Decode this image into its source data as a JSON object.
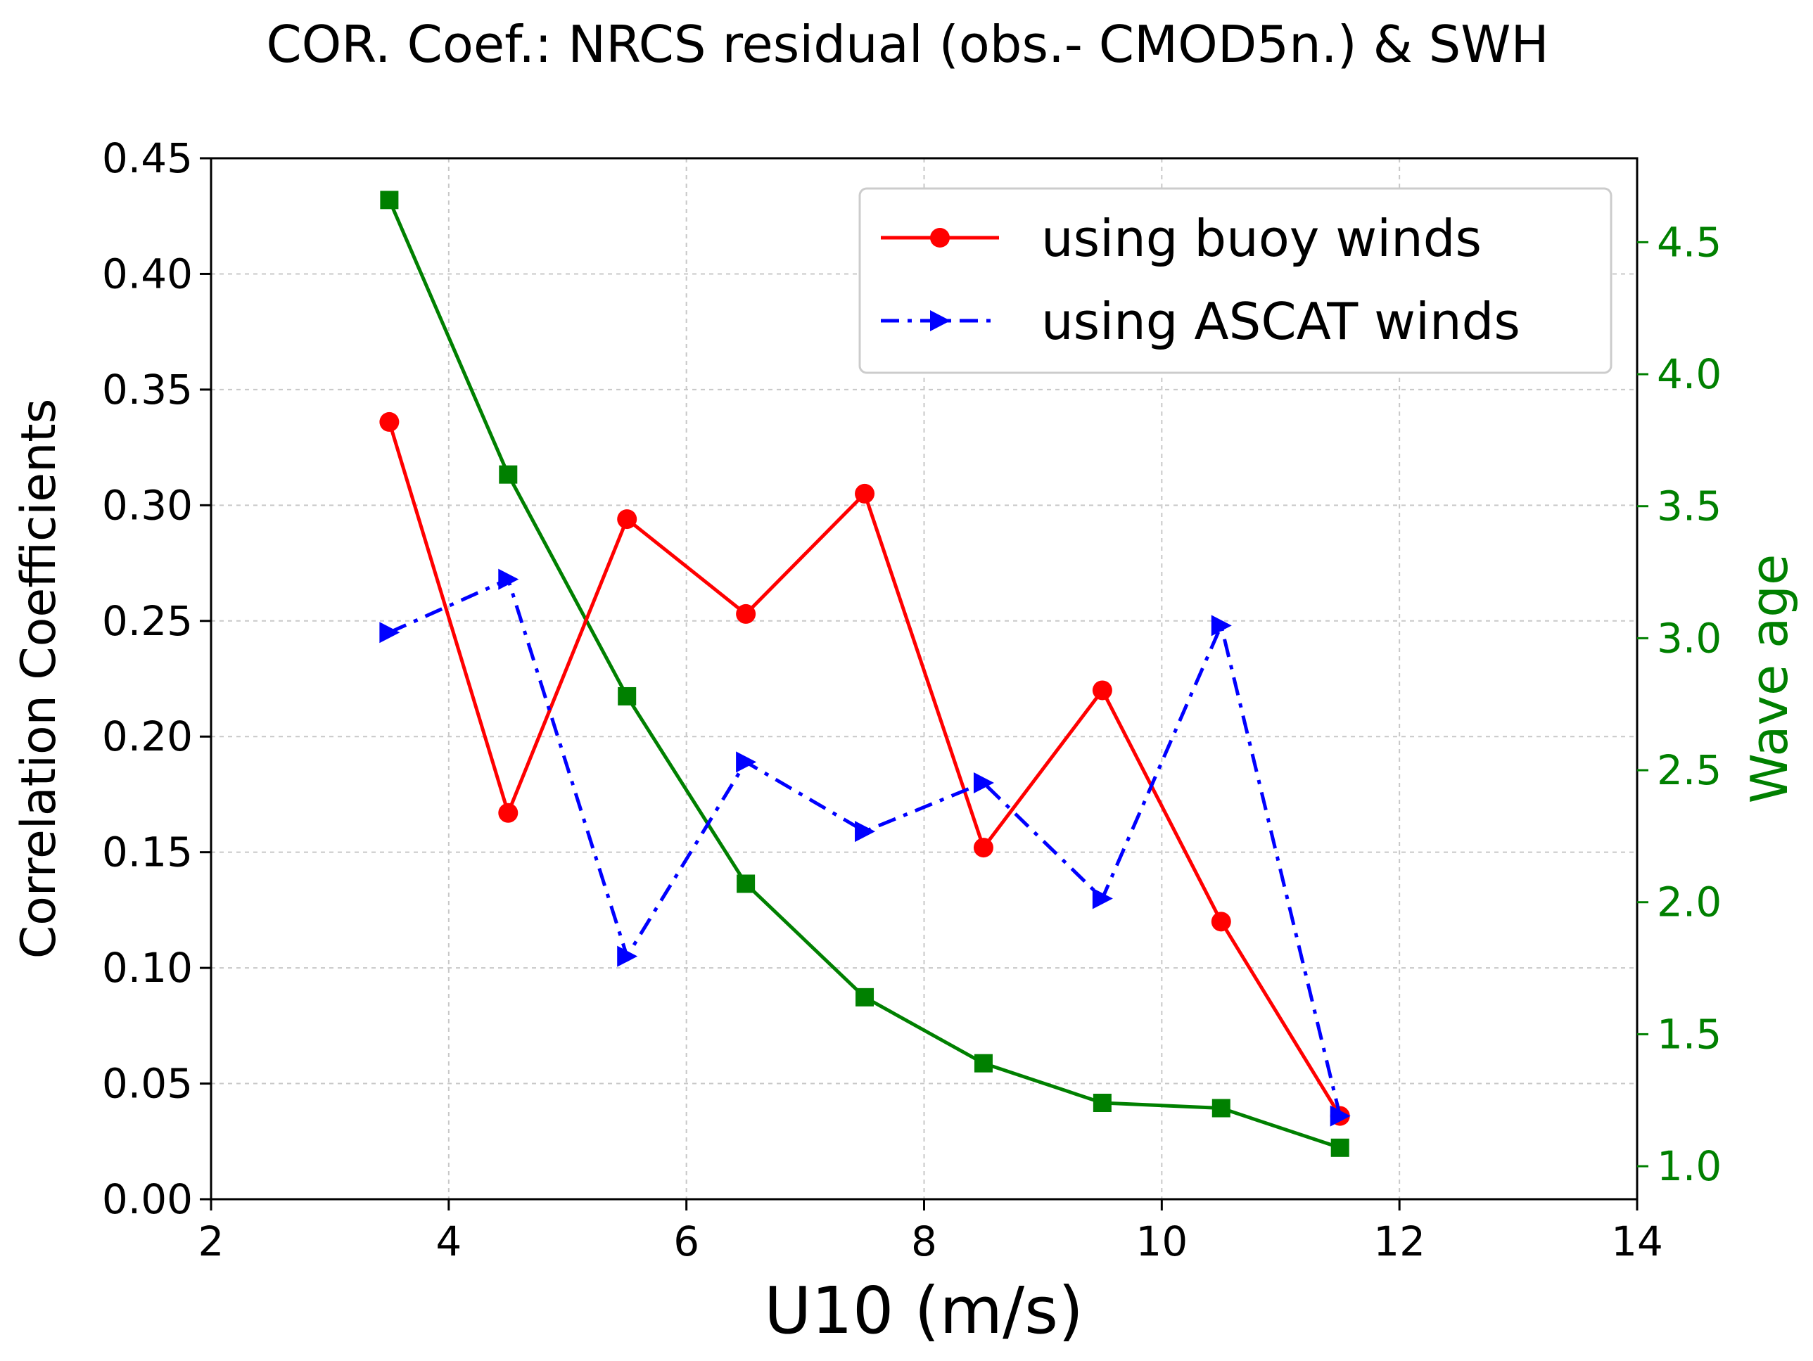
{
  "chart_data": {
    "type": "line",
    "title": "COR. Coef.: NRCS residual (obs.- CMOD5n.) & SWH",
    "xlabel": "U10 (m/s)",
    "ylabel": "Correlation Coefficients",
    "y2label": "Wave age",
    "xlim": [
      2,
      14
    ],
    "ylim": [
      0,
      0.45
    ],
    "y2lim": [
      0.875,
      4.818
    ],
    "grid": true,
    "legend_position": "top-right",
    "x_ticks": [
      "2",
      "4",
      "6",
      "8",
      "10",
      "12",
      "14"
    ],
    "y_ticks": [
      "0.00",
      "0.05",
      "0.10",
      "0.15",
      "0.20",
      "0.25",
      "0.30",
      "0.35",
      "0.40",
      "0.45"
    ],
    "y2_ticks": [
      "1.0",
      "1.5",
      "2.0",
      "2.5",
      "3.0",
      "3.5",
      "4.0",
      "4.5"
    ],
    "x": [
      3.5,
      4.5,
      5.5,
      6.5,
      7.5,
      8.5,
      9.5,
      10.5,
      11.5
    ],
    "series": [
      {
        "name": "using buoy winds",
        "axis": "left",
        "color": "#ff0000",
        "marker": "circle",
        "linestyle": "solid",
        "values": [
          0.336,
          0.167,
          0.294,
          0.253,
          0.305,
          0.152,
          0.22,
          0.12,
          0.036
        ]
      },
      {
        "name": "using ASCAT winds",
        "axis": "left",
        "color": "#0000ff",
        "marker": "triangle-right",
        "linestyle": "dashdot",
        "values": [
          0.245,
          0.268,
          0.105,
          0.189,
          0.159,
          0.18,
          0.13,
          0.248,
          0.036
        ]
      },
      {
        "name": "Wave age",
        "axis": "right",
        "color": "#008000",
        "marker": "square",
        "linestyle": "solid",
        "in_legend": false,
        "values": [
          4.66,
          3.62,
          2.78,
          2.07,
          1.64,
          1.39,
          1.24,
          1.22,
          1.07
        ]
      }
    ]
  },
  "colors": {
    "right_axis": "#008000",
    "axes": "#000000"
  }
}
